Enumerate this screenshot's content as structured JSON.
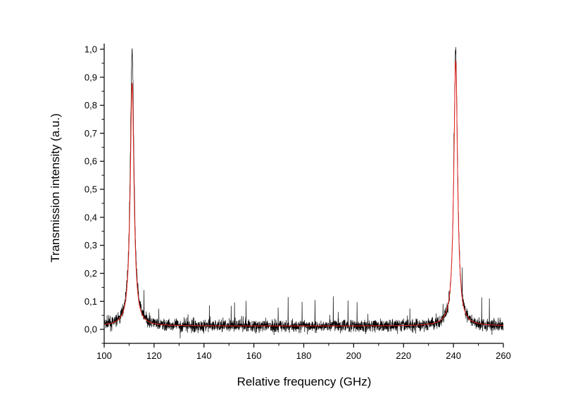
{
  "chart_data": {
    "type": "line",
    "title": "",
    "xlabel": "Relative frequency (GHz)",
    "ylabel": "Transmission intensity (a.u.)",
    "xlim": [
      100,
      260
    ],
    "ylim": [
      -0.05,
      1.02
    ],
    "x_ticks": [
      "100",
      "120",
      "140",
      "160",
      "180",
      "200",
      "220",
      "240",
      "260"
    ],
    "y_ticks": [
      "0,0",
      "0,1",
      "0,2",
      "0,3",
      "0,4",
      "0,5",
      "0,6",
      "0,7",
      "0,8",
      "0,9",
      "1,0"
    ],
    "grid": false,
    "legend": "none",
    "series": [
      {
        "kind": "measured",
        "color": "#000000",
        "baseline": 0.012,
        "noise_amplitude": 0.04,
        "peaks": [
          {
            "center": 111.2,
            "height": 1.0,
            "hwhm": 0.9
          },
          {
            "center": 240.9,
            "height": 1.0,
            "hwhm": 0.9
          }
        ]
      },
      {
        "kind": "fit",
        "color": "#e8231c",
        "baseline": 0.012,
        "peaks": [
          {
            "center": 111.2,
            "height": 0.88,
            "hwhm": 0.9
          },
          {
            "center": 240.9,
            "height": 0.96,
            "hwhm": 0.9
          }
        ]
      }
    ]
  }
}
